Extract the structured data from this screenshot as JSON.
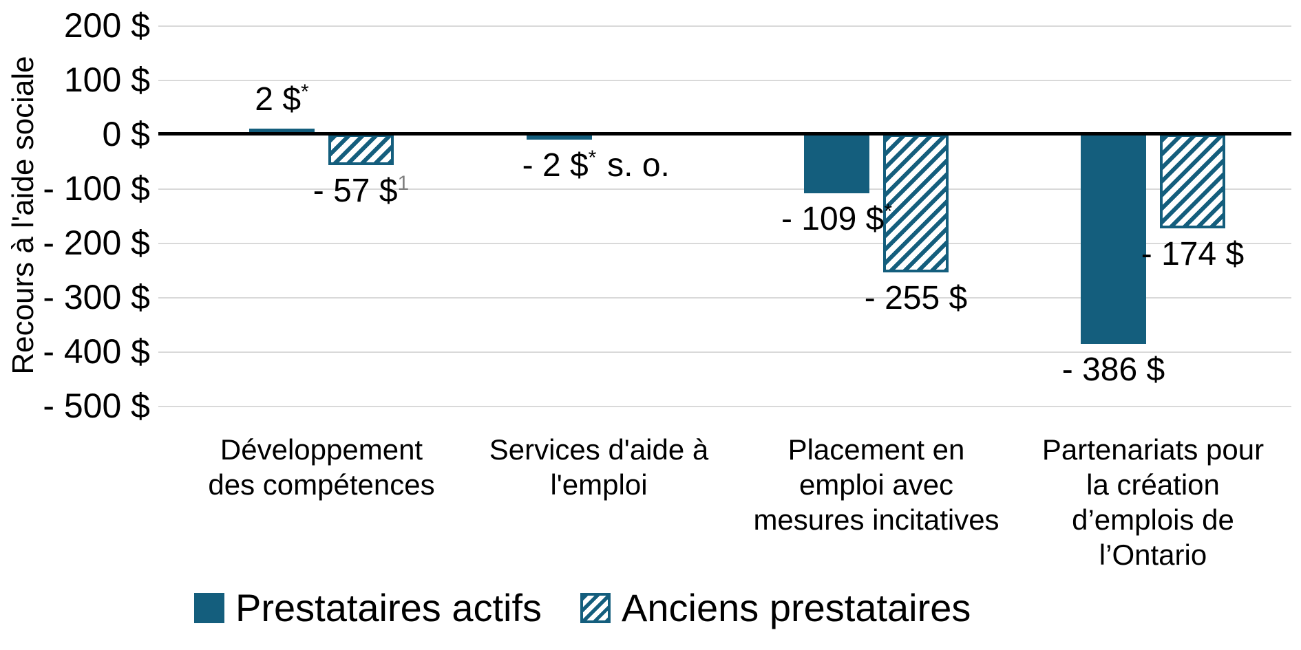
{
  "colors": {
    "bar_teal": "#145E7D",
    "gridline": "#D9D9D9",
    "axis_line": "#000000",
    "text": "#000000",
    "footnote_gray": "#7F7F7F",
    "background": "#FFFFFF"
  },
  "chart_data": {
    "type": "bar",
    "title": "",
    "xlabel": "",
    "ylabel": "Recours à l'aide sociale",
    "ylim": [
      -500,
      200
    ],
    "grid": true,
    "legend_position": "bottom",
    "y_ticks": [
      {
        "label": "200 $",
        "value": 200
      },
      {
        "label": "100 $",
        "value": 100
      },
      {
        "label": "0 $",
        "value": 0
      },
      {
        "label": "- 100 $",
        "value": -100
      },
      {
        "label": "- 200 $",
        "value": -200
      },
      {
        "label": "- 300 $",
        "value": -300
      },
      {
        "label": "- 400 $",
        "value": -400
      },
      {
        "label": "- 500 $",
        "value": -500
      }
    ],
    "categories": [
      {
        "lines": [
          "Développement",
          "des compétences"
        ]
      },
      {
        "lines": [
          "Services d'aide à",
          "l'emploi"
        ]
      },
      {
        "lines": [
          "Placement en",
          "emploi avec",
          "mesures incitatives"
        ]
      },
      {
        "lines": [
          "Partenariats pour",
          "la création",
          "d’emplois de",
          "l’Ontario"
        ]
      }
    ],
    "series": [
      {
        "name": "Prestataires actifs",
        "style": "solid",
        "values": [
          2,
          -2,
          -109,
          -386
        ],
        "labels": [
          {
            "text": "2 $",
            "sup": "*"
          },
          {
            "text": "- 2 $",
            "sup": "*"
          },
          {
            "text": "- 109 $",
            "sup": "*"
          },
          {
            "text": "- 386 $",
            "sup": ""
          }
        ]
      },
      {
        "name": "Anciens prestataires",
        "style": "hatched",
        "values": [
          -57,
          null,
          -255,
          -174
        ],
        "labels": [
          {
            "text": "- 57 $",
            "sup": "1",
            "sup_gray": true
          },
          {
            "text": "s. o.",
            "sup": "",
            "na": true
          },
          {
            "text": "- 255 $",
            "sup": ""
          },
          {
            "text": "- 174 $",
            "sup": ""
          }
        ]
      }
    ]
  }
}
